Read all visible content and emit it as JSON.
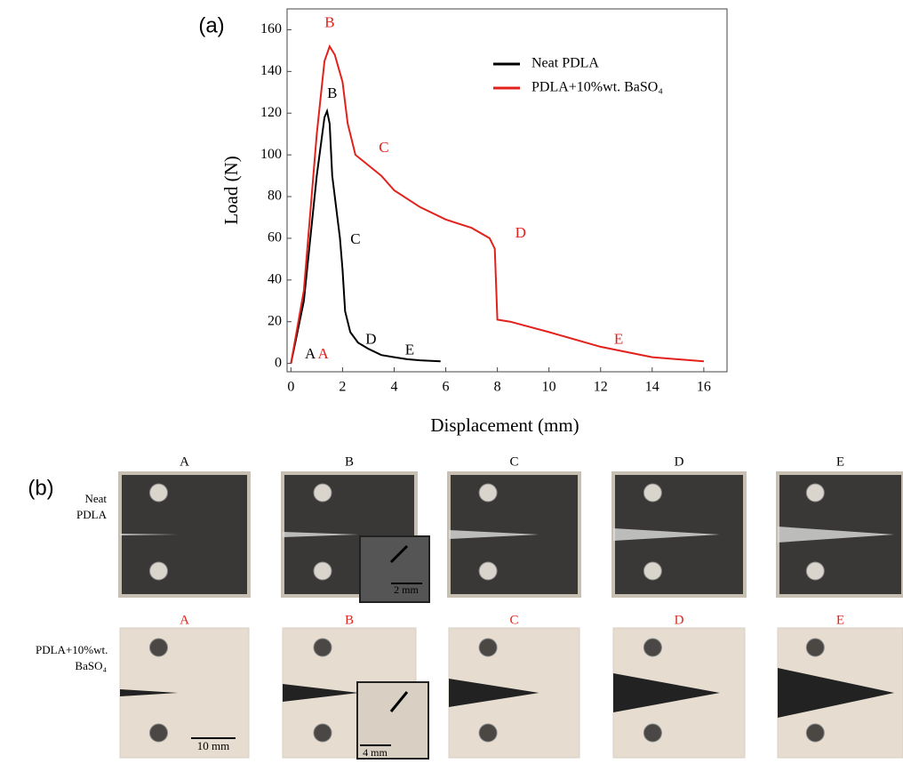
{
  "chart_data": {
    "type": "line",
    "panel_label": "(a)",
    "x_label": "Displacement (mm)",
    "y_label": "Load (N)",
    "xlim": [
      -0.15,
      16.9
    ],
    "ylim": [
      -4,
      170
    ],
    "xticks": [
      0,
      2,
      4,
      6,
      8,
      10,
      12,
      14,
      16
    ],
    "yticks": [
      0,
      20,
      40,
      60,
      80,
      100,
      120,
      140,
      160
    ],
    "legend": "upper right",
    "series": [
      {
        "name": "Neat PDLA",
        "color": "#000000",
        "x": [
          0,
          0.5,
          1,
          1.3,
          1.4,
          1.5,
          1.6,
          1.8,
          1.9,
          2.0,
          2.1,
          2.3,
          2.6,
          3,
          3.5,
          4,
          4.5,
          5,
          5.8
        ],
        "values": [
          0,
          30,
          90,
          118,
          121,
          115,
          90,
          70,
          60,
          45,
          25,
          15,
          10,
          7,
          4,
          3,
          2,
          1.5,
          1
        ]
      },
      {
        "name": "PDLA+10%wt. BaSO₄",
        "color": "#e3211c",
        "x": [
          0,
          0.5,
          1,
          1.3,
          1.5,
          1.7,
          2,
          2.2,
          2.5,
          3,
          3.5,
          4,
          5,
          6,
          7,
          7.7,
          7.9,
          8,
          8.5,
          10,
          12,
          14,
          16
        ],
        "values": [
          0,
          35,
          110,
          145,
          152,
          148,
          135,
          115,
          100,
          95,
          90,
          83,
          75,
          69,
          65,
          60,
          55,
          21,
          20,
          15,
          8,
          3,
          1
        ]
      }
    ],
    "annotations": [
      {
        "text": "A",
        "x": 0.75,
        "y": 4,
        "color": "#000000"
      },
      {
        "text": "B",
        "x": 1.6,
        "y": 129,
        "color": "#000000"
      },
      {
        "text": "C",
        "x": 2.5,
        "y": 59,
        "color": "#000000"
      },
      {
        "text": "D",
        "x": 3.1,
        "y": 11,
        "color": "#000000"
      },
      {
        "text": "E",
        "x": 4.6,
        "y": 6,
        "color": "#000000"
      },
      {
        "text": "A",
        "x": 1.25,
        "y": 4,
        "color": "#e3211c"
      },
      {
        "text": "B",
        "x": 1.5,
        "y": 163,
        "color": "#e3211c"
      },
      {
        "text": "C",
        "x": 3.6,
        "y": 103,
        "color": "#e3211c"
      },
      {
        "text": "D",
        "x": 8.9,
        "y": 62,
        "color": "#e3211c"
      },
      {
        "text": "E",
        "x": 12.7,
        "y": 11,
        "color": "#e3211c"
      }
    ]
  },
  "panel_b": {
    "label": "(b)",
    "rows": [
      {
        "name": "Neat PDLA",
        "labels": [
          "A",
          "B",
          "C",
          "D",
          "E"
        ],
        "scale_bar": "2 mm"
      },
      {
        "name": "PDLA+10%wt. BaSO₄",
        "labels": [
          "A",
          "B",
          "C",
          "D",
          "E"
        ],
        "scale_bar": "10 mm",
        "inset_scale_bar": "4 mm"
      }
    ]
  }
}
